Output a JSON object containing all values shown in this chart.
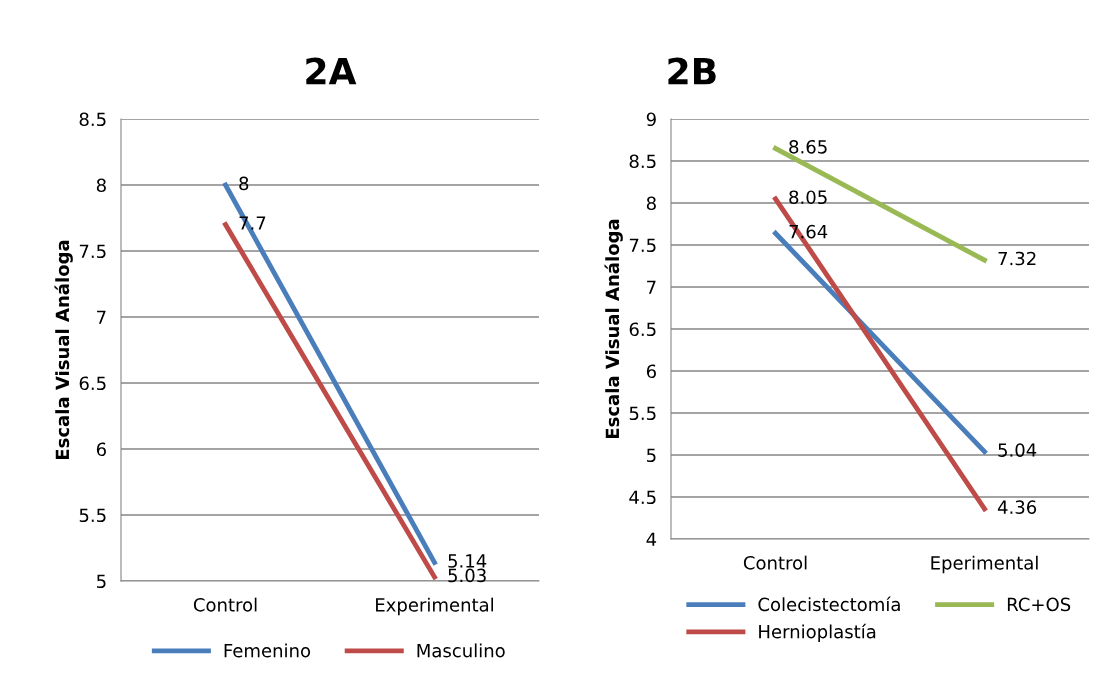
{
  "chart_data": [
    {
      "type": "line",
      "title": "2A",
      "ylabel": "Escala Visual Análoga",
      "categories": [
        "Control",
        "Experimental"
      ],
      "series": [
        {
          "name": "Femenino",
          "color": "#4a7ebb",
          "values": [
            8,
            5.14
          ]
        },
        {
          "name": "Masculino",
          "color": "#be4b48",
          "values": [
            7.7,
            5.03
          ]
        }
      ],
      "ylim": [
        5,
        8.5
      ],
      "yticks": [
        5,
        5.5,
        6,
        6.5,
        7,
        7.5,
        8,
        8.5
      ],
      "grid": "y",
      "legend": "bottom",
      "data_labels": true,
      "marker": "none",
      "line_style": "solid"
    },
    {
      "type": "line",
      "title": "2B",
      "ylabel": "Escala Visual Análoga",
      "categories": [
        "Control",
        "Eperimental"
      ],
      "series": [
        {
          "name": "Colecistectomía",
          "color": "#4a7ebb",
          "values": [
            7.64,
            5.04
          ]
        },
        {
          "name": "Hernioplastía",
          "color": "#be4b48",
          "values": [
            8.05,
            4.36
          ]
        },
        {
          "name": "RC+OS",
          "color": "#98b954",
          "values": [
            8.65,
            7.32
          ]
        }
      ],
      "ylim": [
        4,
        9
      ],
      "yticks": [
        4,
        4.5,
        5,
        5.5,
        6,
        6.5,
        7,
        7.5,
        8,
        8.5,
        9
      ],
      "grid": "y",
      "legend": "bottom",
      "data_labels": true,
      "marker": "none",
      "line_style": "solid"
    }
  ]
}
